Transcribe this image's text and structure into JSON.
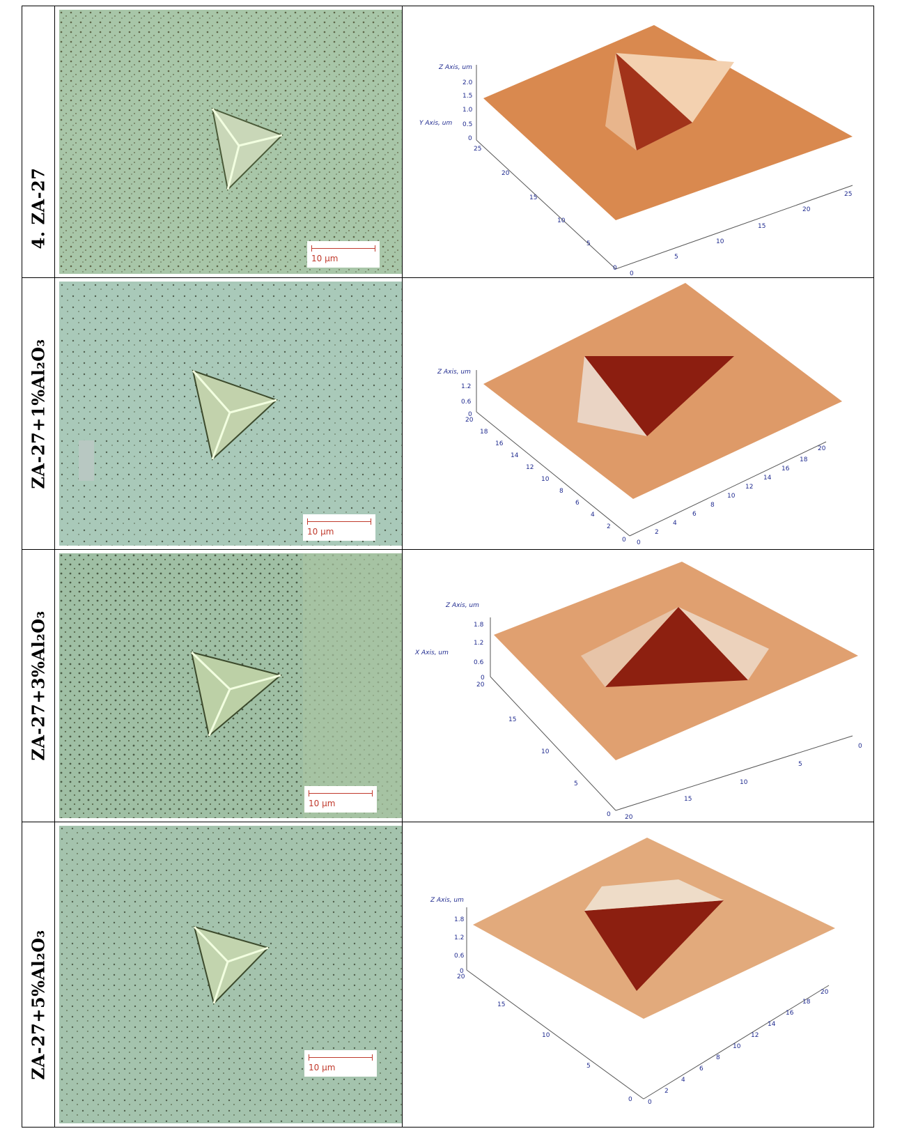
{
  "rows": [
    {
      "label": "4.  ZA-27",
      "scale": "10 μm",
      "afm": {
        "z_axis_title": "Z Axis, um",
        "y_axis_title": "Y Axis, um",
        "z_ticks": [
          "2.0",
          "1.5",
          "1.0",
          "0.5",
          "0"
        ],
        "left_ticks": [
          "25",
          "20",
          "15",
          "10",
          "5",
          "0"
        ],
        "right_ticks": [
          "0",
          "5",
          "10",
          "15",
          "20",
          "25"
        ]
      }
    },
    {
      "label": "ZA-27+1%Al₂O₃",
      "scale": "10 μm",
      "afm": {
        "z_axis_title": "Z Axis, um",
        "z_ticks": [
          "1.2",
          "0.6",
          "0"
        ],
        "left_ticks": [
          "20",
          "18",
          "16",
          "14",
          "12",
          "10",
          "8",
          "6",
          "4",
          "2",
          "0"
        ],
        "right_ticks": [
          "0",
          "2",
          "4",
          "6",
          "8",
          "10",
          "12",
          "14",
          "16",
          "18",
          "20"
        ]
      }
    },
    {
      "label": "ZA-27+3%Al₂O₃",
      "scale": "10 μm",
      "afm": {
        "z_axis_title": "Z Axis, um",
        "x_axis_title": "X Axis, um",
        "z_ticks": [
          "1.8",
          "1.2",
          "0.6",
          "0"
        ],
        "left_ticks": [
          "20",
          "15",
          "10",
          "5",
          "0"
        ],
        "right_ticks": [
          "20",
          "15",
          "10",
          "5",
          "0"
        ]
      }
    },
    {
      "label": "ZA-27+5%Al₂O₃",
      "scale": "10 μm",
      "afm": {
        "z_axis_title": "Z Axis, um",
        "z_ticks": [
          "1.8",
          "1.2",
          "0.6",
          "0"
        ],
        "left_ticks": [
          "20",
          "15",
          "10",
          "5",
          "0"
        ],
        "right_ticks": [
          "0",
          "2",
          "4",
          "6",
          "8",
          "10",
          "12",
          "14",
          "16",
          "18",
          "20"
        ]
      }
    }
  ]
}
